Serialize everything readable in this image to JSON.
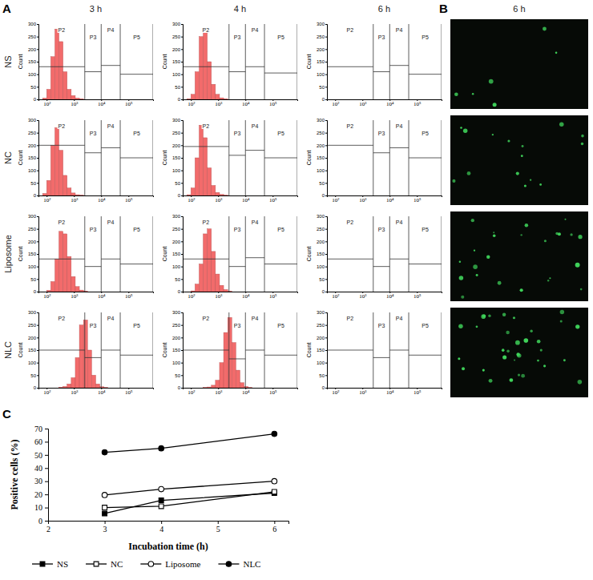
{
  "figure": {
    "panel_letters": [
      "A",
      "B",
      "C"
    ],
    "column_titles": [
      "3 h",
      "4 h",
      "6 h",
      "6 h"
    ],
    "row_labels": [
      "NS",
      "NC",
      "Liposome",
      "NLC"
    ]
  },
  "chart_data": [
    {
      "type": "histogram",
      "ylabel": "Count",
      "log": "x",
      "xlim": [
        50,
        800000
      ],
      "xticks": [
        {
          "value": 100,
          "label": "10²"
        },
        {
          "value": 1000,
          "label": "10³"
        },
        {
          "value": 10000,
          "label": "10⁴"
        },
        {
          "value": 100000,
          "label": "10⁵"
        }
      ],
      "ylim": [
        0,
        300
      ],
      "yticks": [
        0,
        50,
        100,
        150,
        200,
        250,
        300
      ],
      "color": "#f26b6b",
      "bins": [
        50,
        71,
        100,
        141,
        200,
        282,
        398,
        562,
        794,
        1122,
        1585,
        2239,
        3162,
        4467,
        6310,
        8913,
        12589,
        17783,
        25119
      ],
      "gates": [
        "P2",
        "P3",
        "P4",
        "P5"
      ],
      "gate_edges": [
        50,
        2500,
        10000,
        50000,
        800000
      ],
      "panels": [
        [
          {
            "gate_levels": [
              130,
              110,
              135,
              100
            ],
            "counts": [
              0,
              5,
              40,
              170,
              280,
              230,
              110,
              40,
              15,
              5,
              2,
              0,
              0,
              0,
              0,
              0,
              0,
              0
            ]
          },
          {
            "gate_levels": [
              130,
              110,
              130,
              105
            ],
            "counts": [
              0,
              2,
              20,
              110,
              250,
              270,
              150,
              60,
              20,
              6,
              2,
              0,
              0,
              0,
              0,
              0,
              0,
              0
            ]
          },
          {
            "gate_levels": [
              130,
              110,
              135,
              100
            ]
          }
        ],
        [
          {
            "gate_levels": [
              200,
              170,
              190,
              150
            ],
            "counts": [
              0,
              8,
              60,
              200,
              270,
              180,
              80,
              30,
              10,
              3,
              1,
              0,
              0,
              0,
              0,
              0,
              0,
              0
            ]
          },
          {
            "gate_levels": [
              195,
              160,
              180,
              150
            ],
            "counts": [
              0,
              3,
              30,
              150,
              280,
              230,
              110,
              40,
              12,
              4,
              1,
              0,
              0,
              0,
              0,
              0,
              0,
              0
            ]
          },
          {
            "gate_levels": [
              200,
              170,
              190,
              150
            ]
          }
        ],
        [
          {
            "gate_levels": [
              130,
              100,
              130,
              110
            ],
            "counts": [
              0,
              0,
              5,
              40,
              130,
              240,
              230,
              140,
              60,
              20,
              6,
              2,
              0,
              0,
              0,
              0,
              0,
              0
            ]
          },
          {
            "gate_levels": [
              130,
              100,
              135,
              110
            ],
            "counts": [
              0,
              0,
              3,
              30,
              110,
              230,
              250,
              160,
              70,
              25,
              8,
              2,
              0,
              0,
              0,
              0,
              0,
              0
            ]
          },
          {
            "gate_levels": [
              130,
              100,
              130,
              110
            ]
          }
        ],
        [
          {
            "gate_levels": [
              150,
              120,
              150,
              130
            ],
            "counts": [
              0,
              0,
              0,
              0,
              0,
              2,
              5,
              15,
              40,
              120,
              250,
              270,
              150,
              50,
              15,
              4,
              1,
              0
            ]
          },
          {
            "gate_levels": [
              150,
              115,
              150,
              130
            ],
            "counts": [
              0,
              0,
              0,
              0,
              0,
              1,
              3,
              10,
              30,
              100,
              220,
              280,
              180,
              70,
              20,
              5,
              1,
              0
            ]
          },
          {
            "gate_levels": [
              150,
              120,
              150,
              130
            ]
          }
        ]
      ]
    },
    {
      "type": "line",
      "xlabel": "Incubation time (h)",
      "ylabel": "Positive cells (%)",
      "x": [
        3,
        4,
        6
      ],
      "xlim": [
        2,
        6.25
      ],
      "xticks": [
        2,
        3,
        4,
        5,
        6
      ],
      "ylim": [
        0,
        70
      ],
      "yticks": [
        0,
        10,
        20,
        30,
        40,
        50,
        60,
        70
      ],
      "legend": "bottom",
      "series": [
        {
          "name": "NS",
          "color": "#000000",
          "marker": "square",
          "values": [
            5.5,
            15.5,
            21
          ]
        },
        {
          "name": "NC",
          "color": "#000000",
          "marker": "square-open",
          "values": [
            10,
            11,
            22
          ]
        },
        {
          "name": "Liposome",
          "color": "#000000",
          "marker": "circle-open",
          "values": [
            19.5,
            24,
            30
          ]
        },
        {
          "name": "NLC",
          "color": "#000000",
          "marker": "circle",
          "values": [
            52,
            55,
            66
          ]
        }
      ]
    }
  ]
}
